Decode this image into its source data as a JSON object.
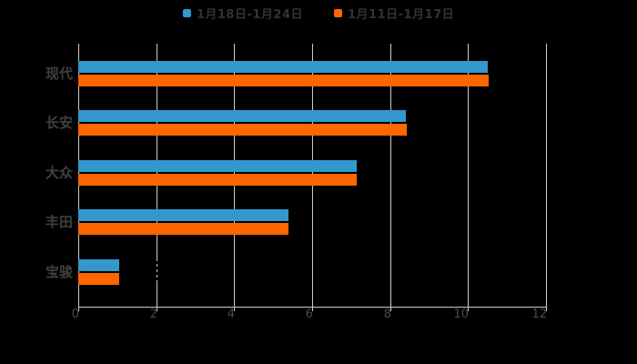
{
  "legend": {
    "items": [
      {
        "label": "1月18日-1月24日",
        "color": "#3398cb"
      },
      {
        "label": "1月11日-1月17日",
        "color": "#ff6600"
      }
    ]
  },
  "chart_data": {
    "type": "bar",
    "orientation": "horizontal",
    "title": "",
    "xlabel": "",
    "ylabel": "",
    "categories": [
      "现代",
      "长安",
      "大众",
      "丰田",
      "宝骏"
    ],
    "series": [
      {
        "name": "1月18日-1月24日",
        "color": "#3398cb",
        "values": [
          10.5,
          8.4,
          7.15,
          5.4,
          1.05
        ]
      },
      {
        "name": "1月11日-1月17日",
        "color": "#ff6600",
        "values": [
          10.53,
          8.42,
          7.15,
          5.4,
          1.05
        ]
      }
    ],
    "xlim": [
      0,
      12
    ],
    "xticks": [
      0,
      2,
      4,
      6,
      8,
      10,
      12
    ],
    "grid": true,
    "legend_position": "top",
    "colors": {
      "background": "#000000",
      "grid": "#cccccc",
      "axis": "#cccccc",
      "tick_label": "#4a4a4a",
      "category_label": "#404040",
      "legend_text": "#333333"
    }
  }
}
